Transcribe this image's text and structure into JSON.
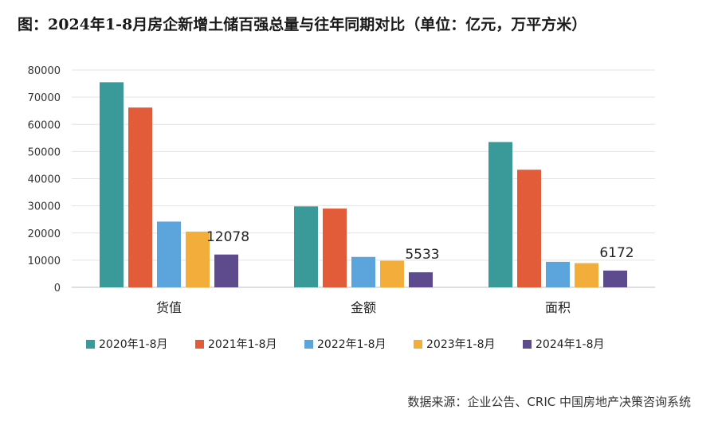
{
  "title": "图：2024年1-8月房企新增土储百强总量与往年同期对比（单位：亿元，万平方米）",
  "source": "数据来源：企业公告、CRIC 中国房地产决策咨询系统",
  "chart_data": {
    "type": "bar",
    "categories": [
      "货值",
      "金额",
      "面积"
    ],
    "series": [
      {
        "name": "2020年1-8月",
        "color": "#3a9a9a",
        "values": [
          75500,
          29800,
          53500
        ]
      },
      {
        "name": "2021年1-8月",
        "color": "#e35c3a",
        "values": [
          66200,
          29000,
          43300
        ]
      },
      {
        "name": "2022年1-8月",
        "color": "#5ba4dc",
        "values": [
          24200,
          11200,
          9400
        ]
      },
      {
        "name": "2023年1-8月",
        "color": "#f2ad3b",
        "values": [
          20500,
          9800,
          8900
        ]
      },
      {
        "name": "2024年1-8月",
        "color": "#5e4b8e",
        "values": [
          12078,
          5533,
          6172
        ]
      }
    ],
    "data_labels": [
      {
        "series": "2024年1-8月",
        "category": "货值",
        "text": "12078"
      },
      {
        "series": "2024年1-8月",
        "category": "金额",
        "text": "5533"
      },
      {
        "series": "2024年1-8月",
        "category": "面积",
        "text": "6172"
      }
    ],
    "yticks": [
      0,
      10000,
      20000,
      30000,
      40000,
      50000,
      60000,
      70000,
      80000
    ],
    "ylim": [
      0,
      80000
    ],
    "grid": true,
    "legend": "bottom"
  }
}
